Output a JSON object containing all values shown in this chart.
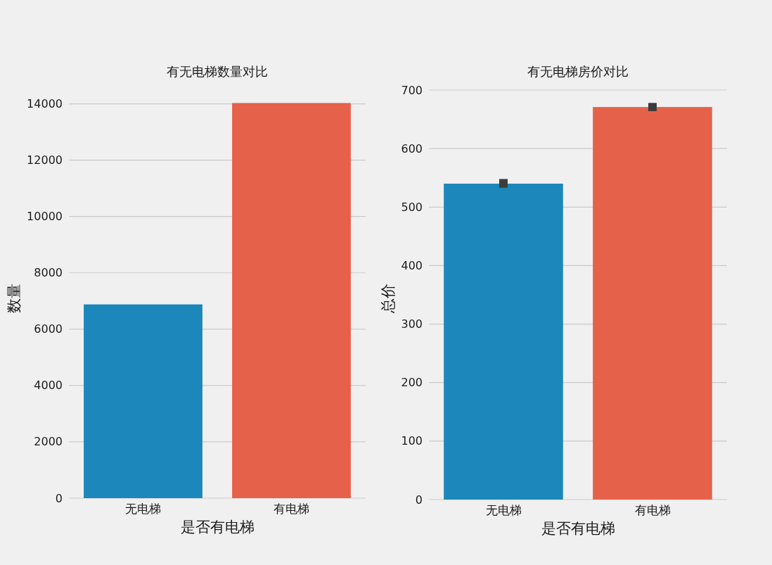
{
  "chart_data": [
    {
      "type": "bar",
      "title": "有无电梯数量对比",
      "xlabel": "是否有电梯",
      "ylabel": "数量",
      "categories": [
        "无电梯",
        "有电梯"
      ],
      "values": [
        6880,
        14030
      ],
      "colors": [
        "#1c87bb",
        "#e5614a"
      ],
      "ylim": [
        0,
        14030
      ],
      "yticks": [
        0,
        2000,
        4000,
        6000,
        8000,
        10000,
        12000,
        14000
      ],
      "grid": "y"
    },
    {
      "type": "bar",
      "title": "有无电梯房价对比",
      "xlabel": "是否有电梯",
      "ylabel": "总价",
      "categories": [
        "无电梯",
        "有电梯"
      ],
      "values": [
        540,
        671
      ],
      "errors": [
        [
          533,
          548
        ],
        [
          664,
          678
        ]
      ],
      "colors": [
        "#1c87bb",
        "#e5614a"
      ],
      "ylim": [
        0,
        700
      ],
      "yticks": [
        0,
        100,
        200,
        300,
        400,
        500,
        600,
        700
      ],
      "grid": "y"
    }
  ]
}
